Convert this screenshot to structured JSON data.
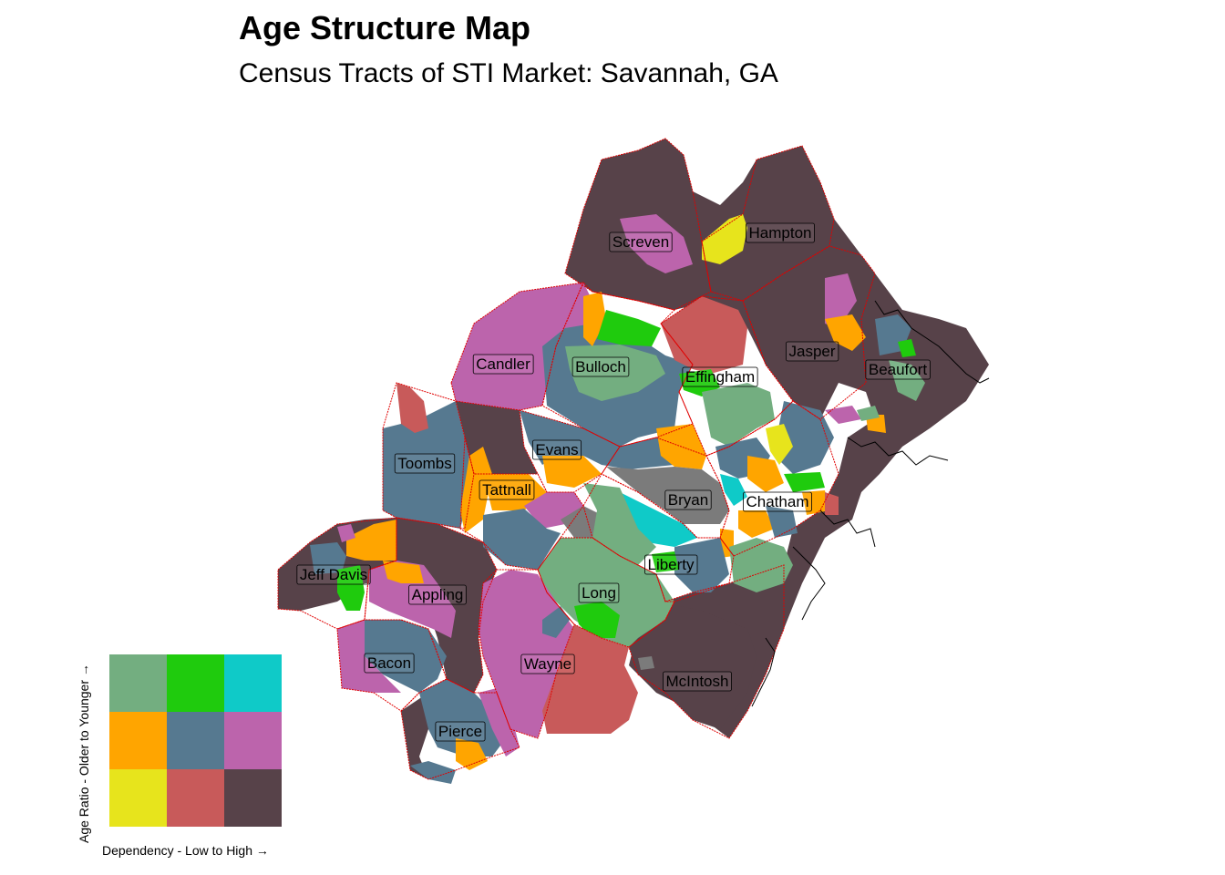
{
  "title": "Age Structure Map",
  "subtitle": "Census Tracts of STI Market: Savannah, GA",
  "palette": {
    "dark": "#574249",
    "pink": "#bc64ac",
    "slate": "#567990",
    "orange": "#ffa500",
    "sage": "#73ae80",
    "green": "#1fcb0d",
    "cyan": "#0fcac8",
    "yellow": "#e7e41c",
    "red": "#c85a5a",
    "gray": "#7b7b7b",
    "boundary": "#e00000"
  },
  "counties": [
    {
      "name": "Screven"
    },
    {
      "name": "Hampton"
    },
    {
      "name": "Jasper"
    },
    {
      "name": "Beaufort"
    },
    {
      "name": "Candler"
    },
    {
      "name": "Bulloch"
    },
    {
      "name": "Effingham"
    },
    {
      "name": "Toombs"
    },
    {
      "name": "Evans"
    },
    {
      "name": "Tattnall"
    },
    {
      "name": "Bryan"
    },
    {
      "name": "Chatham"
    },
    {
      "name": "Jeff Davis"
    },
    {
      "name": "Appling"
    },
    {
      "name": "Liberty"
    },
    {
      "name": "Long"
    },
    {
      "name": "Bacon"
    },
    {
      "name": "Wayne"
    },
    {
      "name": "McIntosh"
    },
    {
      "name": "Pierce"
    }
  ],
  "legend": {
    "x_label": "Dependency - Low to High →",
    "y_label": "Age Ratio - Older to Younger →",
    "grid": [
      [
        "#73ae80",
        "#1fcb0d",
        "#0fcac8"
      ],
      [
        "#ffa500",
        "#567990",
        "#bc64ac"
      ],
      [
        "#e7e41c",
        "#c85a5a",
        "#574249"
      ]
    ]
  }
}
